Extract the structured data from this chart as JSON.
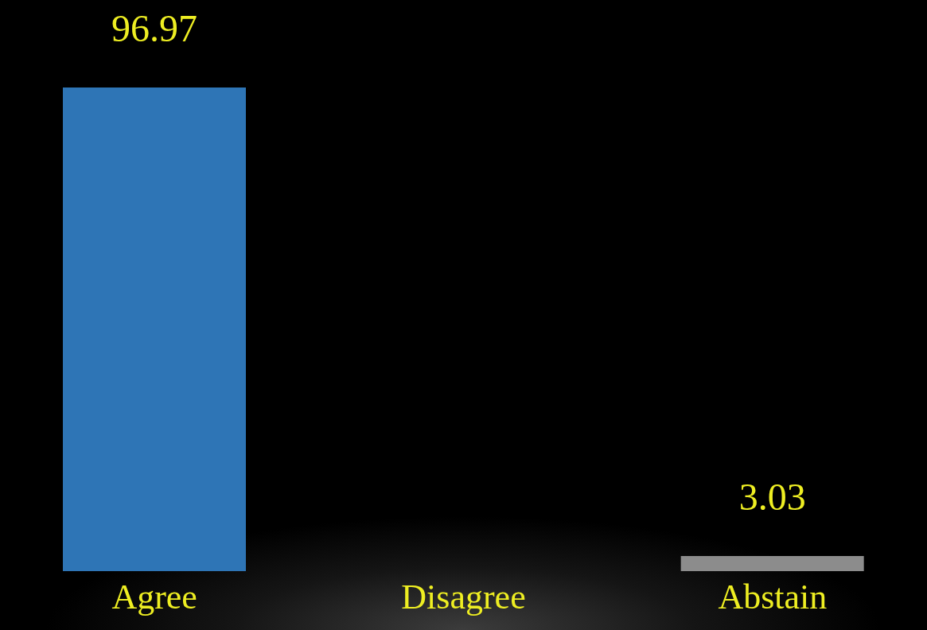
{
  "chart_data": {
    "type": "bar",
    "categories": [
      "Agree",
      "Disagree",
      "Abstain"
    ],
    "values": [
      96.97,
      0,
      3.03
    ],
    "colors": [
      "#2e75b6",
      null,
      "#8c8c8c"
    ],
    "value_labels": [
      "96.97",
      null,
      "3.03"
    ],
    "grid": false,
    "legend": false
  }
}
